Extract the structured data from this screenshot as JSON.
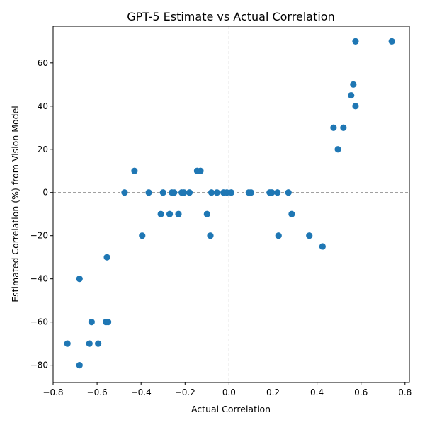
{
  "chart_data": {
    "type": "scatter",
    "title": "GPT-5 Estimate vs Actual Correlation",
    "xlabel": "Actual Correlation",
    "ylabel": "Estimated Correlation (%) from Vision Model",
    "xlim": [
      -0.8,
      0.82
    ],
    "ylim": [
      -88,
      77
    ],
    "xticks": [
      -0.8,
      -0.6,
      -0.4,
      -0.2,
      0.0,
      0.2,
      0.4,
      0.6,
      0.8
    ],
    "xtick_labels": [
      "−0.8",
      "−0.6",
      "−0.4",
      "−0.2",
      "0.0",
      "0.2",
      "0.4",
      "0.6",
      "0.8"
    ],
    "yticks": [
      -80,
      -60,
      -40,
      -20,
      0,
      20,
      40,
      60
    ],
    "ytick_labels": [
      "−80",
      "−60",
      "−40",
      "−20",
      "0",
      "20",
      "40",
      "60"
    ],
    "reference_lines": {
      "x": 0,
      "y": 0,
      "style": "dashed",
      "color": "#808080"
    },
    "marker_color": "#1f77b4",
    "grid": false,
    "points": [
      {
        "x": -0.735,
        "y": -70
      },
      {
        "x": -0.68,
        "y": -80
      },
      {
        "x": -0.68,
        "y": -40
      },
      {
        "x": -0.635,
        "y": -70
      },
      {
        "x": -0.625,
        "y": -60
      },
      {
        "x": -0.595,
        "y": -70
      },
      {
        "x": -0.56,
        "y": -60
      },
      {
        "x": -0.55,
        "y": -60
      },
      {
        "x": -0.555,
        "y": -30
      },
      {
        "x": -0.475,
        "y": 0
      },
      {
        "x": -0.43,
        "y": 10
      },
      {
        "x": -0.395,
        "y": -20
      },
      {
        "x": -0.365,
        "y": 0
      },
      {
        "x": -0.31,
        "y": -10
      },
      {
        "x": -0.3,
        "y": 0
      },
      {
        "x": -0.27,
        "y": -10
      },
      {
        "x": -0.26,
        "y": 0
      },
      {
        "x": -0.25,
        "y": 0
      },
      {
        "x": -0.23,
        "y": -10
      },
      {
        "x": -0.215,
        "y": 0
      },
      {
        "x": -0.205,
        "y": 0
      },
      {
        "x": -0.18,
        "y": 0
      },
      {
        "x": -0.145,
        "y": 10
      },
      {
        "x": -0.13,
        "y": 10
      },
      {
        "x": -0.1,
        "y": -10
      },
      {
        "x": -0.085,
        "y": -20
      },
      {
        "x": -0.08,
        "y": 0
      },
      {
        "x": -0.055,
        "y": 0
      },
      {
        "x": -0.025,
        "y": 0
      },
      {
        "x": -0.01,
        "y": 0
      },
      {
        "x": 0.01,
        "y": 0
      },
      {
        "x": 0.09,
        "y": 0
      },
      {
        "x": 0.1,
        "y": 0
      },
      {
        "x": 0.185,
        "y": 0
      },
      {
        "x": 0.195,
        "y": 0
      },
      {
        "x": 0.22,
        "y": 0
      },
      {
        "x": 0.225,
        "y": -20
      },
      {
        "x": 0.27,
        "y": 0
      },
      {
        "x": 0.285,
        "y": -10
      },
      {
        "x": 0.365,
        "y": -20
      },
      {
        "x": 0.425,
        "y": -25
      },
      {
        "x": 0.475,
        "y": 30
      },
      {
        "x": 0.495,
        "y": 20
      },
      {
        "x": 0.52,
        "y": 30
      },
      {
        "x": 0.555,
        "y": 45
      },
      {
        "x": 0.565,
        "y": 50
      },
      {
        "x": 0.575,
        "y": 40
      },
      {
        "x": 0.575,
        "y": 70
      },
      {
        "x": 0.74,
        "y": 70
      }
    ]
  }
}
